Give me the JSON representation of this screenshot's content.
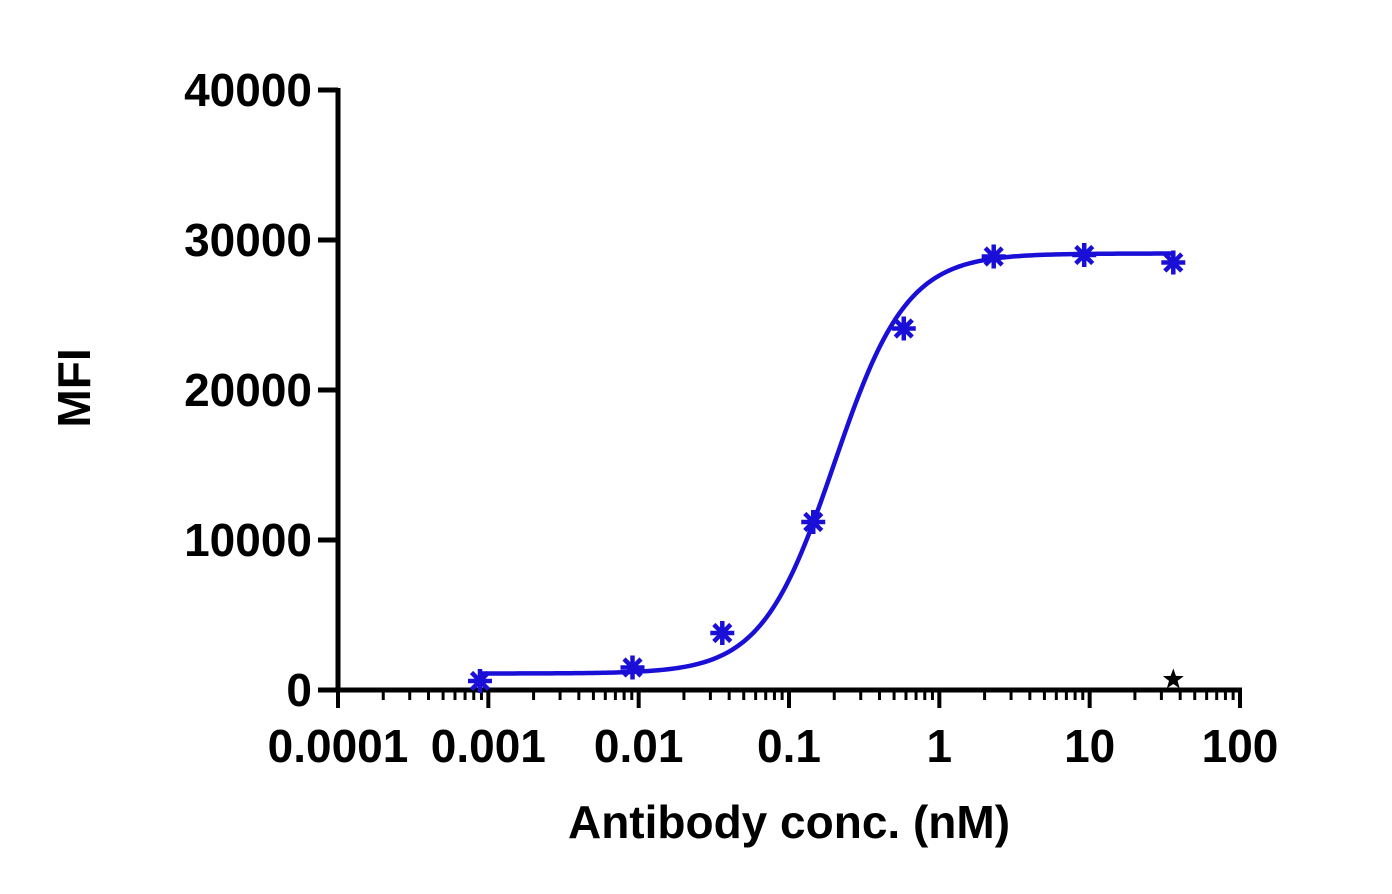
{
  "chart_data": {
    "type": "scatter",
    "title": "",
    "xlabel": "Antibody conc. (nM)",
    "ylabel": "MFI",
    "x_scale": "log10",
    "xlim": [
      0.0001,
      100
    ],
    "ylim": [
      0,
      40000
    ],
    "x_ticks": [
      {
        "value": 0.0001,
        "label": "0.0001"
      },
      {
        "value": 0.001,
        "label": "0.001"
      },
      {
        "value": 0.01,
        "label": "0.01"
      },
      {
        "value": 0.1,
        "label": "0.1"
      },
      {
        "value": 1,
        "label": "1"
      },
      {
        "value": 10,
        "label": "10"
      },
      {
        "value": 100,
        "label": "100"
      }
    ],
    "y_ticks": [
      {
        "value": 0,
        "label": "0"
      },
      {
        "value": 10000,
        "label": "10000"
      },
      {
        "value": 20000,
        "label": "20000"
      },
      {
        "value": 30000,
        "label": "30000"
      },
      {
        "value": 40000,
        "label": "40000"
      }
    ],
    "grid": false,
    "legend": "none",
    "series": [
      {
        "color": "#1a0fd6",
        "marker": "asterisk",
        "points": [
          {
            "x": 0.00088,
            "y": 600
          },
          {
            "x": 0.0091,
            "y": 1500
          },
          {
            "x": 0.036,
            "y": 3800
          },
          {
            "x": 0.145,
            "y": 11200
          },
          {
            "x": 0.58,
            "y": 24100
          },
          {
            "x": 2.3,
            "y": 28900
          },
          {
            "x": 9.2,
            "y": 29000
          },
          {
            "x": 36,
            "y": 28500
          }
        ],
        "fit_curve": {
          "model": "four-parameter logistic",
          "bottom": 1100,
          "top": 29100,
          "ec50": 0.2,
          "hill": 1.8,
          "x_range": [
            0.00088,
            36
          ]
        }
      },
      {
        "color": "#000000",
        "marker": "star",
        "points": [
          {
            "x": 36,
            "y": 700
          }
        ]
      }
    ]
  }
}
